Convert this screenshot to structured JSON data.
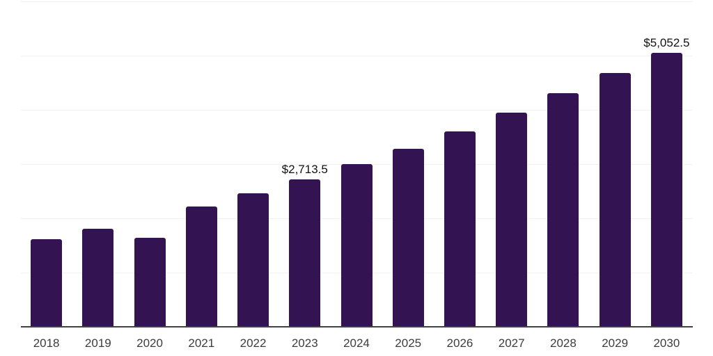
{
  "chart_data": {
    "type": "bar",
    "title": "",
    "xlabel": "",
    "ylabel": "",
    "categories": [
      "2018",
      "2019",
      "2020",
      "2021",
      "2022",
      "2023",
      "2024",
      "2025",
      "2026",
      "2027",
      "2028",
      "2029",
      "2030"
    ],
    "values": [
      1610,
      1800,
      1640,
      2220,
      2465,
      2713.5,
      3000,
      3285,
      3605,
      3940,
      4310,
      4670,
      5052.5
    ],
    "value_labels": [
      "",
      "",
      "",
      "",
      "",
      "$2,713.5",
      "",
      "",
      "",
      "",
      "",
      "",
      "$5,052.5"
    ],
    "ylim": [
      0,
      6000
    ],
    "gridline_interval": 1000,
    "grid": "horizontal",
    "y_tick_labels_shown": false,
    "legend": "none",
    "colors": {
      "bar": "#341352",
      "gridline": "#f2f2f2",
      "axis_line": "#424242",
      "tick_label": "#3c3c3c",
      "value_label": "#111111",
      "background": "#ffffff"
    }
  }
}
